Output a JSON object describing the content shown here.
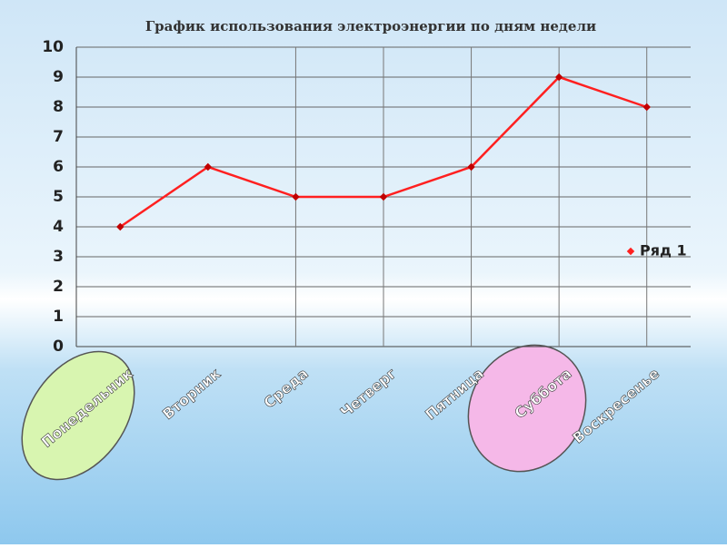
{
  "chart_data": {
    "type": "line",
    "title": "График использования электроэнергии по дням недели",
    "categories": [
      "Понедельник",
      "Вторник",
      "Среда",
      "Четверг",
      "Пятница",
      "Суббота",
      "Воскресенье"
    ],
    "series": [
      {
        "name": "Ряд 1",
        "color": "#ff2020",
        "values": [
          4,
          6,
          5,
          5,
          6,
          9,
          8
        ]
      }
    ],
    "ylim": [
      0,
      10
    ],
    "yticks": [
      0,
      1,
      2,
      3,
      4,
      5,
      6,
      7,
      8,
      9,
      10
    ],
    "grid": true,
    "legend": "right"
  }
}
